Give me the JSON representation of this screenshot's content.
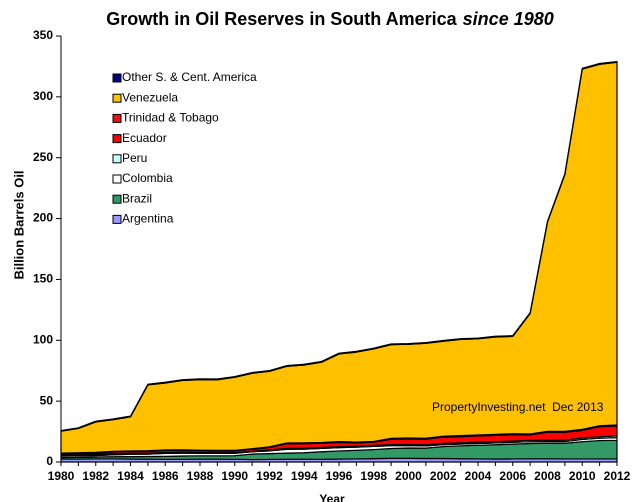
{
  "chart_data": {
    "type": "stacked_area",
    "title": "Growth in Oil Reserves in South America",
    "title_emphasis": "since 1980",
    "y_label": "Billion Barrels Oil",
    "x_label": "Year",
    "annotation": "PropertyInvesting.net  Dec 2013",
    "legend": "upper left",
    "x": [
      1980,
      1981,
      1982,
      1983,
      1984,
      1985,
      1986,
      1987,
      1988,
      1989,
      1990,
      1991,
      1992,
      1993,
      1994,
      1995,
      1996,
      1997,
      1998,
      1999,
      2000,
      2001,
      2002,
      2003,
      2004,
      2005,
      2006,
      2007,
      2008,
      2009,
      2010,
      2011,
      2012
    ],
    "xlim": [
      1980,
      2012
    ],
    "xticks": [
      1980,
      1982,
      1984,
      1986,
      1988,
      1990,
      1992,
      1994,
      1996,
      1998,
      2000,
      2002,
      2004,
      2006,
      2008,
      2010,
      2012
    ],
    "ylim": [
      0,
      350
    ],
    "yticks": [
      0,
      50,
      100,
      150,
      200,
      250,
      300,
      350
    ],
    "series": [
      {
        "name": "Argentina",
        "color": "#9999ff",
        "values": [
          2.4,
          2.4,
          2.5,
          2.5,
          2.4,
          2.3,
          2.2,
          2.2,
          2.3,
          2.3,
          2.2,
          2.0,
          2.1,
          2.3,
          2.3,
          2.2,
          2.4,
          2.5,
          2.8,
          3.0,
          3.0,
          2.9,
          2.9,
          2.7,
          2.5,
          2.4,
          2.5,
          2.6,
          2.6,
          2.5,
          2.5,
          2.5,
          2.5
        ]
      },
      {
        "name": "Brazil",
        "color": "#339966",
        "values": [
          1.3,
          1.4,
          1.6,
          1.8,
          2.0,
          2.2,
          2.4,
          2.7,
          2.8,
          2.8,
          3.0,
          4.5,
          4.8,
          5.0,
          5.3,
          6.2,
          6.7,
          7.1,
          7.4,
          8.1,
          8.5,
          8.5,
          9.8,
          10.6,
          11.2,
          11.8,
          12.2,
          12.6,
          12.8,
          12.9,
          14.2,
          15.1,
          15.3
        ]
      },
      {
        "name": "Colombia",
        "color": "#ffffff",
        "values": [
          1.2,
          1.3,
          1.2,
          1.6,
          1.9,
          2.0,
          2.5,
          2.4,
          2.1,
          2.0,
          2.0,
          1.9,
          2.2,
          3.2,
          3.0,
          2.8,
          2.7,
          2.6,
          2.6,
          2.3,
          2.0,
          1.8,
          1.6,
          1.5,
          1.5,
          1.5,
          1.5,
          1.5,
          1.4,
          1.4,
          1.9,
          2.0,
          2.2
        ]
      },
      {
        "name": "Peru",
        "color": "#ccffff",
        "values": [
          0.7,
          0.8,
          0.9,
          0.9,
          0.8,
          0.8,
          0.7,
          0.6,
          0.5,
          0.5,
          0.4,
          0.4,
          0.8,
          0.8,
          0.8,
          0.8,
          0.8,
          0.9,
          0.9,
          0.9,
          0.9,
          1.0,
          1.0,
          0.9,
          1.1,
          1.1,
          1.1,
          1.1,
          1.1,
          1.1,
          1.2,
          1.2,
          1.4
        ]
      },
      {
        "name": "Ecuador",
        "color": "#ff0000",
        "values": [
          1.1,
          1.1,
          1.1,
          1.4,
          1.4,
          1.4,
          1.6,
          1.5,
          1.4,
          1.4,
          1.4,
          1.5,
          2.0,
          3.7,
          3.7,
          3.4,
          3.5,
          2.6,
          2.6,
          4.4,
          4.6,
          4.6,
          5.1,
          5.1,
          5.1,
          5.1,
          5.1,
          4.5,
          6.5,
          6.5,
          6.2,
          8.2,
          8.2
        ]
      },
      {
        "name": "Trinidad & Tobago",
        "color": "#ee1111",
        "values": [
          0.6,
          0.6,
          0.6,
          0.6,
          0.6,
          0.6,
          0.5,
          0.6,
          0.6,
          0.6,
          0.6,
          0.6,
          0.6,
          0.6,
          0.6,
          0.6,
          0.7,
          0.6,
          0.6,
          0.7,
          0.7,
          0.7,
          0.8,
          0.9,
          0.8,
          0.8,
          0.8,
          0.7,
          0.8,
          0.8,
          0.8,
          0.8,
          0.8
        ]
      },
      {
        "name": "Venezuela",
        "color": "#ffc000",
        "values": [
          18,
          20,
          25,
          26,
          28,
          54,
          55,
          57,
          58,
          58,
          60,
          62,
          62,
          63,
          64,
          66,
          72,
          74,
          76,
          77,
          77,
          78,
          78,
          79,
          79,
          80,
          80,
          99,
          172,
          211,
          296,
          297,
          298
        ]
      },
      {
        "name": "Other S. & Cent. America",
        "color": "#000080",
        "values": [
          0.5,
          0.5,
          0.6,
          0.6,
          0.6,
          0.6,
          0.6,
          0.6,
          0.6,
          0.6,
          0.6,
          0.6,
          0.6,
          0.6,
          0.6,
          0.6,
          0.6,
          0.6,
          0.6,
          0.6,
          0.6,
          0.6,
          0.6,
          0.6,
          0.6,
          0.6,
          0.6,
          0.6,
          0.6,
          0.6,
          0.6,
          0.6,
          0.6
        ]
      }
    ]
  }
}
